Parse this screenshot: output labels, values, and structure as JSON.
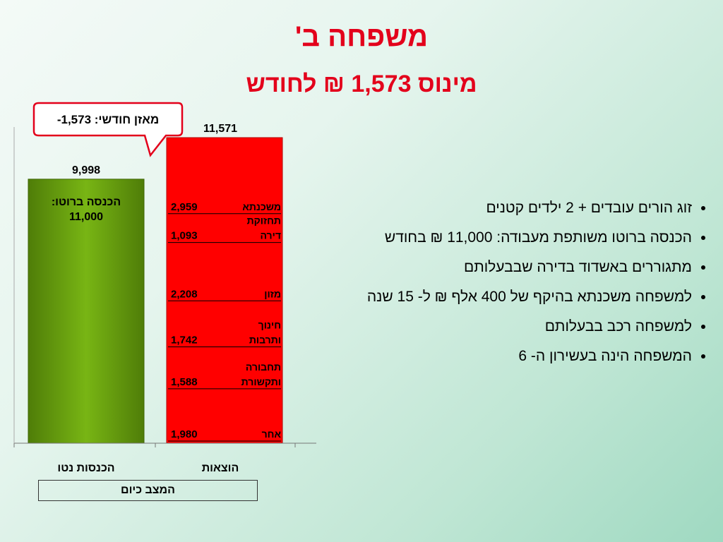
{
  "slide": {
    "title": "משפחה ב'",
    "subtitle": "מינוס 1,573 ₪ לחודש",
    "callout": "מאזן חודשי: 1,573-",
    "status_label": "המצב כיום",
    "bullets": [
      "זוג הורים עובדים + 2 ילדים קטנים",
      "הכנסה ברוטו משותפת מעבודה: 11,000 ₪ בחודש",
      "מתגוררים באשדוד בדירה שבבעלותם",
      "למשפחה משכנתא בהיקף של 400 אלף ₪ ל- 15 שנה",
      "למשפחה רכב בבעלותם",
      "המשפחה הינה בעשירון ה- 6"
    ]
  },
  "chart_data": {
    "type": "bar",
    "stacked": true,
    "categories": [
      "הכנסות נטו",
      "הוצאות"
    ],
    "ylim": [
      0,
      12000
    ],
    "income": {
      "value": 9998,
      "value_label": "9,998",
      "inner_label": [
        "הכנסה ברוטו:",
        "11,000"
      ],
      "color": "#6aa010"
    },
    "expenses": {
      "total": 11571,
      "total_label": "11,571",
      "color": "#ff0000",
      "segments": [
        {
          "name": [
            "אחר"
          ],
          "value": 1980,
          "label": "1,980"
        },
        {
          "name": [
            "תחבורה",
            "ותקשורת"
          ],
          "value": 1588,
          "label": "1,588"
        },
        {
          "name": [
            "חינוך",
            "ותרבות"
          ],
          "value": 1742,
          "label": "1,742"
        },
        {
          "name": [
            "מזון"
          ],
          "value": 2208,
          "label": "2,208"
        },
        {
          "name": [
            "תחזוקת",
            "דירה"
          ],
          "value": 1093,
          "label": "1,093"
        },
        {
          "name": [
            "משכנתא"
          ],
          "value": 2959,
          "label": "2,959"
        }
      ]
    }
  }
}
